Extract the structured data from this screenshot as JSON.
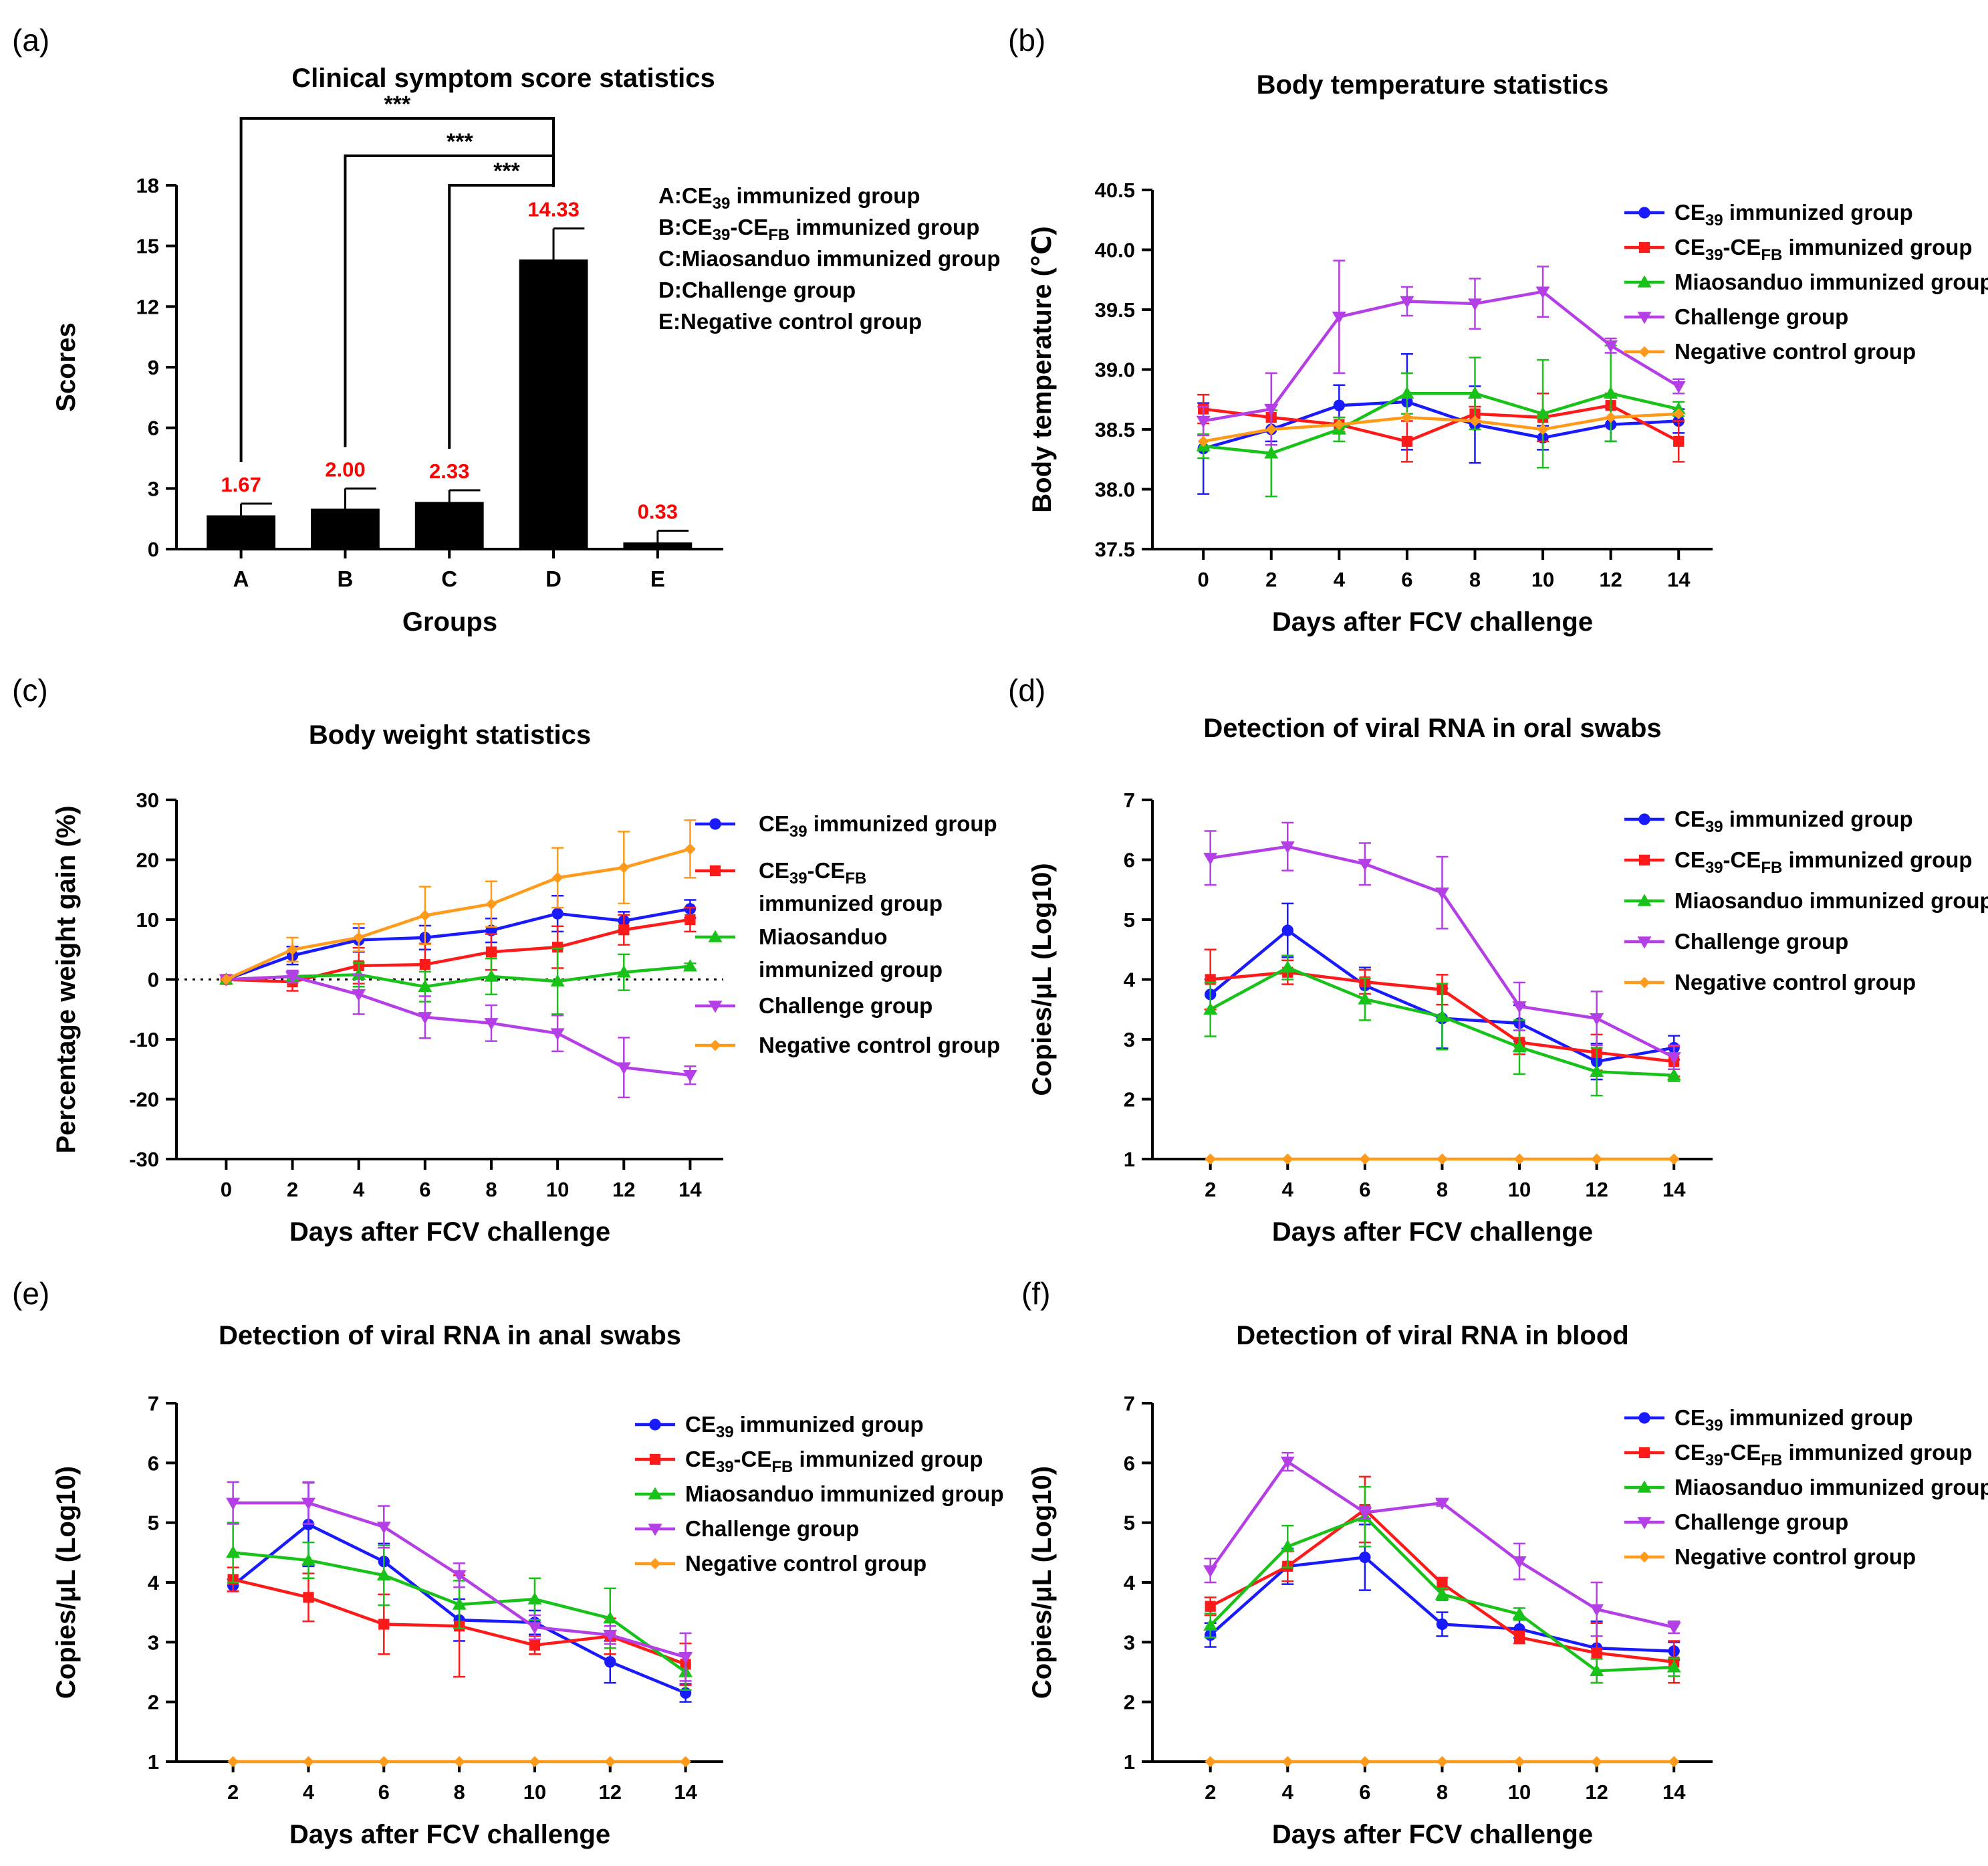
{
  "colors": {
    "ce39": "#1a1aff",
    "cefb": "#ff1a1a",
    "miao": "#19c219",
    "challenge": "#b53fe6",
    "negative": "#ff9a1a",
    "bar": "#000000",
    "bar_label": "#ff0000"
  },
  "chart_data": [
    {
      "id": "a",
      "panel_label": "(a)",
      "type": "bar",
      "title": "Clinical symptom score statistics",
      "xlabel": "Groups",
      "ylabel": "Scores",
      "ylim": [
        0,
        18
      ],
      "yticks": [
        "0",
        "3",
        "6",
        "9",
        "12",
        "15",
        "18"
      ],
      "categories": [
        "A",
        "B",
        "C",
        "D",
        "E"
      ],
      "values": [
        1.67,
        2.0,
        2.33,
        14.33,
        0.33
      ],
      "errors": [
        0.58,
        1.0,
        0.58,
        1.53,
        0.58
      ],
      "value_labels": [
        "1.67",
        "2.00",
        "2.33",
        "14.33",
        "0.33"
      ],
      "significance": [
        {
          "from": "A",
          "to": "D",
          "label": "***"
        },
        {
          "from": "B",
          "to": "D",
          "label": "***"
        },
        {
          "from": "C",
          "to": "D",
          "label": "***"
        }
      ],
      "group_legend": [
        {
          "prefix": "A:CE",
          "sub": "39",
          "suffix": " immunized group"
        },
        {
          "prefix": "B:CE",
          "sub": "39",
          "mid": "-CE",
          "sub2": "FB",
          "suffix": " immunized group"
        },
        {
          "prefix": "C:Miaosanduo immunized group"
        },
        {
          "prefix": "D:Challenge group"
        },
        {
          "prefix": "E:Negative control group"
        }
      ]
    },
    {
      "id": "b",
      "panel_label": "(b)",
      "type": "line",
      "title": "Body temperature statistics",
      "xlabel": "Days after FCV challenge",
      "ylabel": "Body temperature (℃)",
      "x": [
        0,
        2,
        4,
        6,
        8,
        10,
        12,
        14
      ],
      "xlim": [
        -1.5,
        15
      ],
      "ylim": [
        37.5,
        40.5
      ],
      "yticks": [
        "37.5",
        "38.0",
        "38.5",
        "39.0",
        "39.5",
        "40.0",
        "40.5"
      ],
      "series": [
        {
          "key": "ce39",
          "values": [
            38.34,
            38.5,
            38.7,
            38.73,
            38.54,
            38.43,
            38.54,
            38.57
          ],
          "errors": [
            0.38,
            0.1,
            0.17,
            0.4,
            0.32,
            0.1,
            0.14,
            0.1
          ]
        },
        {
          "key": "cefb",
          "values": [
            38.67,
            38.6,
            38.54,
            38.4,
            38.63,
            38.6,
            38.7,
            38.4
          ],
          "errors": [
            0.12,
            0.1,
            0.06,
            0.17,
            0.06,
            0.2,
            0.1,
            0.17
          ]
        },
        {
          "key": "miao",
          "values": [
            38.36,
            38.3,
            38.5,
            38.8,
            38.8,
            38.63,
            38.8,
            38.67
          ],
          "errors": [
            0.1,
            0.36,
            0.1,
            0.17,
            0.3,
            0.45,
            0.4,
            0.06
          ]
        },
        {
          "key": "challenge",
          "values": [
            38.57,
            38.67,
            39.44,
            39.57,
            39.55,
            39.65,
            39.2,
            38.86
          ],
          "errors": [
            0.12,
            0.3,
            0.47,
            0.12,
            0.21,
            0.21,
            0.06,
            0.06
          ]
        },
        {
          "key": "negative",
          "values": [
            38.4,
            38.5,
            38.54,
            38.6,
            38.57,
            38.5,
            38.6,
            38.63
          ],
          "errors": [
            0.0,
            0.0,
            0.0,
            0.0,
            0.0,
            0.0,
            0.0,
            0.0
          ]
        }
      ],
      "legend_layout": "single"
    },
    {
      "id": "c",
      "panel_label": "(c)",
      "type": "line",
      "title": "Body weight statistics",
      "xlabel": "Days after FCV challenge",
      "ylabel": "Percentage weight gain (%)",
      "x": [
        0,
        2,
        4,
        6,
        8,
        10,
        12,
        14
      ],
      "xlim": [
        -1.5,
        15
      ],
      "ylim": [
        -30,
        30
      ],
      "yticks": [
        "-30",
        "-20",
        "-10",
        "0",
        "10",
        "20",
        "30"
      ],
      "zero_line": true,
      "series": [
        {
          "key": "ce39",
          "values": [
            0,
            4.0,
            6.6,
            7.0,
            8.2,
            11.0,
            9.8,
            11.8
          ],
          "errors": [
            0,
            1.5,
            2.0,
            2.0,
            2.0,
            3.0,
            1.5,
            1.5
          ]
        },
        {
          "key": "cefb",
          "values": [
            0,
            -0.4,
            2.3,
            2.5,
            4.6,
            5.4,
            8.3,
            10.0
          ],
          "errors": [
            0,
            1.5,
            3.0,
            3.5,
            3.0,
            3.5,
            2.5,
            2.0
          ]
        },
        {
          "key": "miao",
          "values": [
            0,
            0.5,
            0.8,
            -1.2,
            0.5,
            -0.3,
            1.2,
            2.2
          ],
          "errors": [
            0,
            1.0,
            2.0,
            2.5,
            3.0,
            5.5,
            3.0,
            0.5
          ]
        },
        {
          "key": "challenge",
          "values": [
            0,
            0.5,
            -2.5,
            -6.3,
            -7.3,
            -9.0,
            -14.7,
            -16.0
          ],
          "errors": [
            0,
            1.0,
            3.3,
            3.5,
            3.0,
            3.0,
            5.0,
            1.5
          ]
        },
        {
          "key": "negative",
          "values": [
            0,
            5.0,
            7.0,
            10.7,
            12.6,
            17.0,
            18.7,
            21.8
          ],
          "errors": [
            0,
            2.0,
            2.3,
            4.8,
            3.8,
            5.0,
            6.0,
            4.8
          ]
        }
      ],
      "legend_layout": "wrapped"
    },
    {
      "id": "d",
      "panel_label": "(d)",
      "type": "line",
      "title": "Detection of viral RNA in oral swabs",
      "xlabel": "Days after FCV challenge",
      "ylabel": "Copies/μL (Log10)",
      "x": [
        2,
        4,
        6,
        8,
        10,
        12,
        14
      ],
      "xlim": [
        0.5,
        15
      ],
      "ylim": [
        1,
        7
      ],
      "yticks": [
        "1",
        "2",
        "3",
        "4",
        "5",
        "6",
        "7"
      ],
      "series": [
        {
          "key": "ce39",
          "values": [
            3.75,
            4.82,
            3.9,
            3.35,
            3.27,
            2.63,
            2.86
          ],
          "errors": [
            0.25,
            0.45,
            0.3,
            0.5,
            0.3,
            0.3,
            0.2
          ]
        },
        {
          "key": "cefb",
          "values": [
            4.0,
            4.12,
            3.96,
            3.83,
            2.95,
            2.78,
            2.63
          ],
          "errors": [
            0.5,
            0.2,
            0.2,
            0.25,
            0.2,
            0.3,
            0.25
          ]
        },
        {
          "key": "miao",
          "values": [
            3.5,
            4.2,
            3.67,
            3.38,
            2.87,
            2.46,
            2.4
          ],
          "errors": [
            0.45,
            0.2,
            0.35,
            0.55,
            0.45,
            0.4,
            0.1
          ]
        },
        {
          "key": "challenge",
          "values": [
            6.03,
            6.22,
            5.93,
            5.45,
            3.55,
            3.35,
            2.7
          ],
          "errors": [
            0.45,
            0.4,
            0.35,
            0.6,
            0.4,
            0.45,
            0.2
          ]
        },
        {
          "key": "negative",
          "values": [
            1,
            1,
            1,
            1,
            1,
            1,
            1
          ],
          "errors": [
            0,
            0,
            0,
            0,
            0,
            0,
            0
          ]
        }
      ],
      "legend_layout": "single"
    },
    {
      "id": "e",
      "panel_label": "(e)",
      "type": "line",
      "title": "Detection of viral RNA in  anal swabs",
      "xlabel": "Days after FCV challenge",
      "ylabel": "Copies/μL (Log10)",
      "x": [
        2,
        4,
        6,
        8,
        10,
        12,
        14
      ],
      "xlim": [
        0.5,
        15
      ],
      "ylim": [
        1,
        7
      ],
      "yticks": [
        "1",
        "2",
        "3",
        "4",
        "5",
        "6",
        "7"
      ],
      "series": [
        {
          "key": "ce39",
          "values": [
            3.95,
            4.97,
            4.35,
            3.37,
            3.33,
            2.67,
            2.15
          ],
          "errors": [
            0.1,
            0.7,
            0.3,
            0.35,
            0.2,
            0.35,
            0.15
          ]
        },
        {
          "key": "cefb",
          "values": [
            4.05,
            3.75,
            3.3,
            3.27,
            2.95,
            3.1,
            2.63
          ],
          "errors": [
            0.2,
            0.4,
            0.5,
            0.85,
            0.15,
            0.3,
            0.35
          ]
        },
        {
          "key": "miao",
          "values": [
            4.5,
            4.37,
            4.12,
            3.63,
            3.72,
            3.4,
            2.5
          ],
          "errors": [
            0.5,
            0.3,
            0.5,
            0.4,
            0.35,
            0.5,
            0.3
          ]
        },
        {
          "key": "challenge",
          "values": [
            5.33,
            5.33,
            4.93,
            4.12,
            3.25,
            3.12,
            2.75
          ],
          "errors": [
            0.35,
            0.35,
            0.35,
            0.2,
            0.2,
            0.15,
            0.4
          ]
        },
        {
          "key": "negative",
          "values": [
            1,
            1,
            1,
            1,
            1,
            1,
            1
          ],
          "errors": [
            0,
            0,
            0,
            0,
            0,
            0,
            0
          ]
        }
      ],
      "legend_layout": "single"
    },
    {
      "id": "f",
      "panel_label": "(f)",
      "type": "line",
      "title": "Detection of viral RNA in blood",
      "xlabel": "Days after FCV challenge",
      "ylabel": "Copies/μL (Log10)",
      "x": [
        2,
        4,
        6,
        8,
        10,
        12,
        14
      ],
      "xlim": [
        0.5,
        15
      ],
      "ylim": [
        1,
        7
      ],
      "yticks": [
        "1",
        "2",
        "3",
        "4",
        "5",
        "6",
        "7"
      ],
      "series": [
        {
          "key": "ce39",
          "values": [
            3.12,
            4.27,
            4.42,
            3.3,
            3.22,
            2.9,
            2.85
          ],
          "errors": [
            0.2,
            0.3,
            0.55,
            0.2,
            0.15,
            0.45,
            0.15
          ]
        },
        {
          "key": "cefb",
          "values": [
            3.6,
            4.27,
            5.22,
            3.98,
            3.08,
            2.82,
            2.67
          ],
          "errors": [
            0.15,
            0.25,
            0.55,
            0.1,
            0.1,
            0.5,
            0.35
          ]
        },
        {
          "key": "miao",
          "values": [
            3.28,
            4.6,
            5.1,
            3.8,
            3.47,
            2.52,
            2.58
          ],
          "errors": [
            0.2,
            0.35,
            0.5,
            0.1,
            0.1,
            0.2,
            0.15
          ]
        },
        {
          "key": "challenge",
          "values": [
            4.2,
            6.02,
            5.17,
            5.33,
            4.35,
            3.55,
            3.25
          ],
          "errors": [
            0.2,
            0.15,
            0.1,
            0.05,
            0.3,
            0.45,
            0.1
          ]
        },
        {
          "key": "negative",
          "values": [
            1,
            1,
            1,
            1,
            1,
            1,
            1
          ],
          "errors": [
            0,
            0,
            0,
            0,
            0,
            0,
            0
          ]
        }
      ],
      "legend_layout": "single"
    }
  ],
  "legend": {
    "ce39": {
      "prefix": "CE",
      "sub": "39",
      "suffix": " immunized group"
    },
    "cefb": {
      "prefix": "CE",
      "sub": "39",
      "mid": "-CE",
      "sub2": "FB",
      "suffix": " immunized group"
    },
    "miao": {
      "prefix": "Miaosanduo immunized group"
    },
    "challenge": {
      "prefix": "Challenge group"
    },
    "negative": {
      "prefix": "Negative control group"
    }
  },
  "legend_wrapped": {
    "ce39": {
      "line1": {
        "prefix": "CE",
        "sub": "39",
        "suffix": " immunized group"
      }
    },
    "cefb": {
      "line1": {
        "prefix": "CE",
        "sub": "39",
        "mid": "-CE",
        "sub2": "FB"
      },
      "line2": "immunized group"
    },
    "miao": {
      "line1": {
        "prefix": "Miaosanduo"
      },
      "line2": "immunized group"
    },
    "challenge": {
      "line1": {
        "prefix": "Challenge group"
      }
    },
    "negative": {
      "line1": {
        "prefix": "Negative control group"
      }
    }
  }
}
